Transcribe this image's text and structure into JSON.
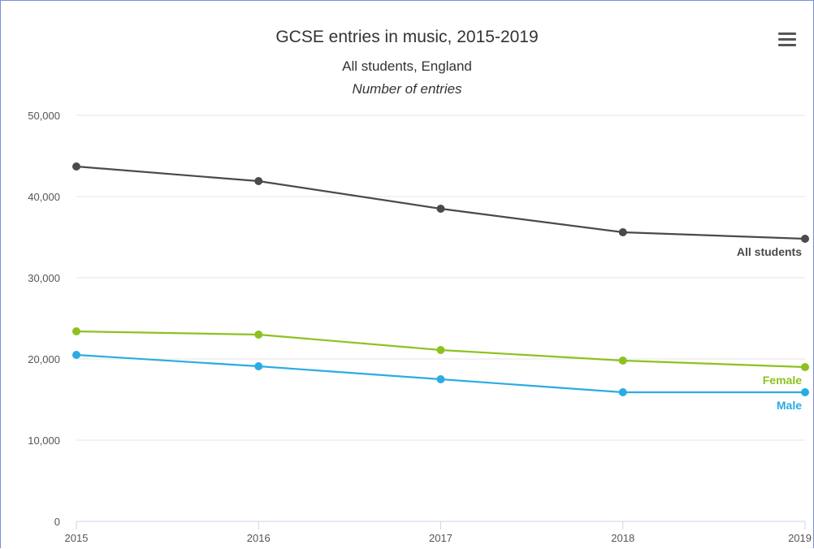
{
  "chart_data": {
    "type": "line",
    "title": "GCSE entries in music, 2015-2019",
    "subtitle": "All students, England",
    "subtitle2": "Number of entries",
    "x": [
      "2015",
      "2016",
      "2017",
      "2018",
      "2019"
    ],
    "yticks": [
      "0",
      "10,000",
      "20,000",
      "30,000",
      "40,000",
      "50,000"
    ],
    "ylim": [
      0,
      50000
    ],
    "grid": true,
    "series": [
      {
        "name": "All students",
        "color": "#4a4a4a",
        "values": [
          43700,
          41900,
          38500,
          35600,
          34800
        ]
      },
      {
        "name": "Female",
        "color": "#8cc21f",
        "values": [
          23400,
          23000,
          21100,
          19800,
          19000
        ]
      },
      {
        "name": "Male",
        "color": "#2aace2",
        "values": [
          20500,
          19100,
          17500,
          15900,
          15900
        ]
      }
    ]
  },
  "menu": {
    "icon": "hamburger-menu-icon"
  }
}
